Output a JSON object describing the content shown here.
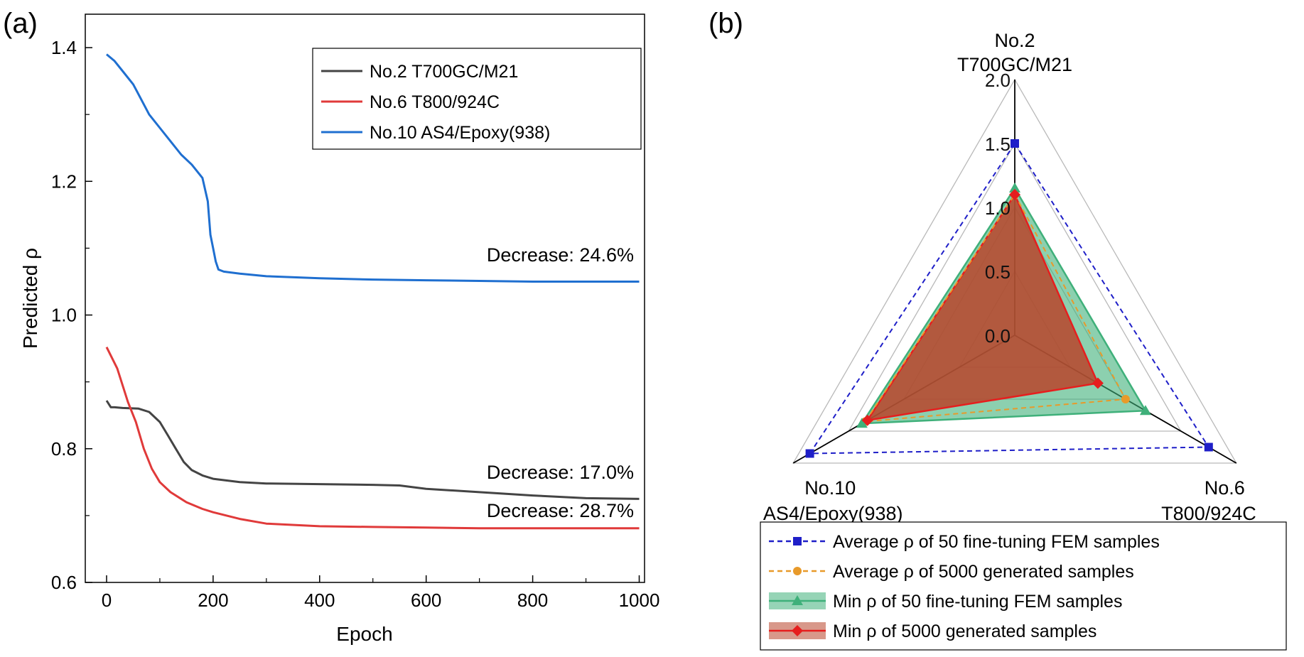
{
  "chart_data": [
    {
      "type": "line",
      "panel_label": "(a)",
      "xlabel": "Epoch",
      "ylabel": "Predicted ρ",
      "xlim": [
        -40,
        1010
      ],
      "ylim": [
        0.6,
        1.45
      ],
      "xticks": [
        0,
        200,
        400,
        600,
        800,
        1000
      ],
      "yticks": [
        0.6,
        0.8,
        1.0,
        1.2,
        1.4
      ],
      "xtick_labels": [
        "0",
        "200",
        "400",
        "600",
        "800",
        "1000"
      ],
      "ytick_labels": [
        "0.6",
        "0.8",
        "1.0",
        "1.2",
        "1.4"
      ],
      "grid": false,
      "legend_position": "top-right",
      "series": [
        {
          "name": "No.2 T700GC/M21",
          "color": "#444444",
          "x": [
            0,
            8,
            15,
            30,
            60,
            80,
            100,
            115,
            130,
            145,
            160,
            180,
            200,
            250,
            300,
            400,
            500,
            550,
            600,
            700,
            800,
            900,
            1000
          ],
          "y": [
            0.872,
            0.862,
            0.862,
            0.861,
            0.86,
            0.855,
            0.84,
            0.82,
            0.8,
            0.78,
            0.768,
            0.76,
            0.755,
            0.75,
            0.748,
            0.747,
            0.746,
            0.745,
            0.74,
            0.735,
            0.73,
            0.726,
            0.725
          ]
        },
        {
          "name": "No.6 T800/924C",
          "color": "#e03a3a",
          "x": [
            0,
            20,
            40,
            55,
            70,
            85,
            100,
            120,
            150,
            180,
            200,
            250,
            300,
            400,
            500,
            600,
            700,
            800,
            900,
            1000
          ],
          "y": [
            0.952,
            0.92,
            0.87,
            0.84,
            0.8,
            0.77,
            0.75,
            0.735,
            0.72,
            0.71,
            0.705,
            0.695,
            0.688,
            0.684,
            0.683,
            0.682,
            0.681,
            0.681,
            0.681,
            0.681
          ]
        },
        {
          "name": "No.10 AS4/Epoxy(938)",
          "color": "#1f6fd0",
          "x": [
            0,
            15,
            30,
            50,
            60,
            80,
            100,
            120,
            140,
            160,
            180,
            190,
            195,
            200,
            205,
            210,
            220,
            250,
            300,
            400,
            500,
            600,
            700,
            800,
            900,
            1000
          ],
          "y": [
            1.39,
            1.38,
            1.365,
            1.345,
            1.33,
            1.3,
            1.28,
            1.26,
            1.24,
            1.225,
            1.205,
            1.17,
            1.12,
            1.1,
            1.08,
            1.068,
            1.065,
            1.062,
            1.058,
            1.055,
            1.053,
            1.052,
            1.051,
            1.05,
            1.05,
            1.05
          ]
        }
      ],
      "annotations": [
        {
          "text": "Decrease: 24.6%",
          "x": 990,
          "y": 1.08
        },
        {
          "text": "Decrease: 17.0%",
          "x": 990,
          "y": 0.755
        },
        {
          "text": "Decrease: 28.7%",
          "x": 990,
          "y": 0.698
        }
      ]
    },
    {
      "type": "radar",
      "panel_label": "(b)",
      "axes": [
        {
          "line1": "No.2",
          "line2": "T700GC/M21"
        },
        {
          "line1": "No.6",
          "line2": "T800/924C"
        },
        {
          "line1": "No.10",
          "line2": "AS4/Epoxy(938)"
        }
      ],
      "range": [
        0.0,
        2.0
      ],
      "ring_values": [
        0.0,
        0.5,
        1.0,
        1.5,
        2.0
      ],
      "ring_labels": [
        "0.0",
        "0.5",
        "1.0",
        "1.5",
        "2.0"
      ],
      "legend_position": "bottom",
      "series": [
        {
          "name": "Average ρ of 50 fine-tuning FEM samples",
          "color": "#1f1fc8",
          "marker": "square",
          "style": "dashed",
          "fill": false,
          "values": [
            1.5,
            1.75,
            1.85
          ]
        },
        {
          "name": "Average ρ of 5000 generated samples",
          "color": "#e89a2a",
          "marker": "circle",
          "style": "dashed",
          "fill": false,
          "values": [
            1.1,
            1.0,
            1.35
          ]
        },
        {
          "name": "Min ρ of 50 fine-tuning FEM samples",
          "color": "#3fb07a",
          "marker": "triangle",
          "style": "solid",
          "fill": true,
          "fill_color": "#3fb07a",
          "values": [
            1.15,
            1.18,
            1.38
          ]
        },
        {
          "name": "Min ρ of 5000 generated samples",
          "color": "#e61e1e",
          "marker": "diamond",
          "style": "solid",
          "fill": true,
          "fill_color": "#b8442a",
          "values": [
            1.1,
            0.75,
            1.33
          ]
        }
      ]
    }
  ]
}
